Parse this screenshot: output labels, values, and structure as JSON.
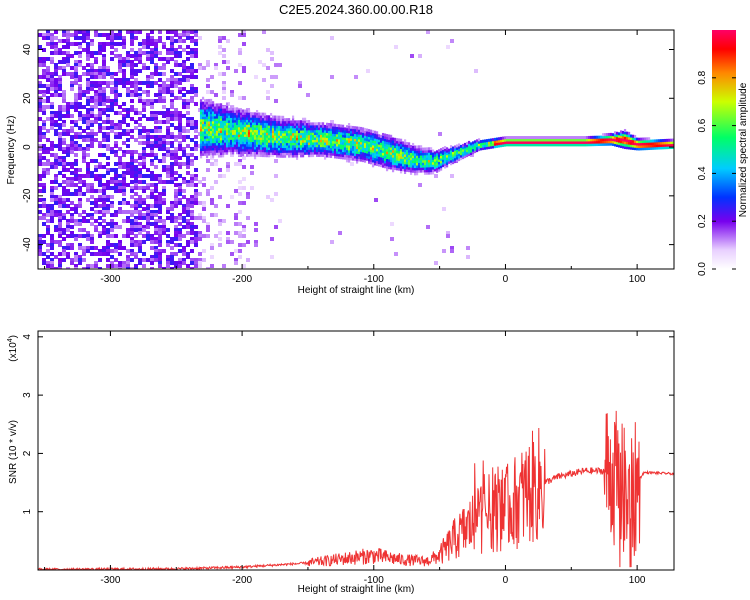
{
  "title": "C2E5.2024.360.00.00.R18",
  "chart_data": [
    {
      "type": "heatmap",
      "xlabel": "Height of straight line (km)",
      "ylabel": "Frequency (Hz)",
      "xlim": [
        -355,
        128
      ],
      "ylim": [
        -50,
        48
      ],
      "xticks": [
        -300,
        -200,
        -100,
        0,
        100
      ],
      "yticks": [
        -40,
        -20,
        0,
        20,
        40
      ],
      "xtick_labels": [
        "-300",
        "-200",
        "-100",
        "0",
        "100"
      ],
      "ytick_labels": [
        "-40",
        "-20",
        "0",
        "20",
        "40"
      ],
      "colorbar": {
        "label": "Normalized spectral amplitude",
        "range": [
          0,
          1
        ],
        "ticks": [
          0.0,
          0.2,
          0.4,
          0.6,
          0.8
        ],
        "tick_labels": [
          "0.0",
          "0.2",
          "0.4",
          "0.6",
          "0.8"
        ]
      },
      "ridge": {
        "x": [
          -230,
          -200,
          -170,
          -140,
          -110,
          -90,
          -70,
          -55,
          -40,
          -20,
          0,
          30,
          60,
          80,
          90,
          100,
          128
        ],
        "center_freq": [
          8,
          6,
          4,
          3,
          1,
          -2,
          -5,
          -6,
          -3,
          1,
          2,
          2,
          2,
          3,
          3,
          1,
          1
        ],
        "half_width": [
          10,
          8,
          7,
          6,
          6,
          6,
          5,
          4,
          3,
          2,
          1.5,
          1.5,
          1.5,
          2,
          3,
          2,
          1.5
        ]
      }
    },
    {
      "type": "line",
      "xlabel": "Height of straight line (km)",
      "ylabel": "SNR (10 * v/v)",
      "y_scale_label": "(x10",
      "y_scale_exp": "4",
      "y_scale_close": ")",
      "xlim": [
        -355,
        128
      ],
      "ylim": [
        0,
        4.1
      ],
      "xticks": [
        -300,
        -200,
        -100,
        0,
        100
      ],
      "yticks": [
        1,
        2,
        3,
        4
      ],
      "xtick_labels": [
        "-300",
        "-200",
        "-100",
        "0",
        "100"
      ],
      "ytick_labels": [
        "1",
        "2",
        "3",
        "4"
      ],
      "series": [
        {
          "color": "#ee3333",
          "envelope": {
            "x": [
              -355,
              -250,
              -200,
              -150,
              -120,
              -100,
              -80,
              -60,
              -50,
              -40,
              -30,
              -20,
              -10,
              0,
              10,
              20,
              40,
              60,
              80,
              85,
              90,
              95,
              100,
              105,
              110,
              128
            ],
            "y": [
              0.01,
              0.02,
              0.05,
              0.12,
              0.2,
              0.25,
              0.18,
              0.15,
              0.25,
              0.5,
              0.7,
              0.9,
              1.0,
              1.05,
              1.2,
              1.4,
              1.6,
              1.7,
              1.7,
              1.5,
              1.3,
              1.0,
              1.5,
              1.67,
              1.67,
              1.65
            ]
          }
        }
      ]
    }
  ]
}
